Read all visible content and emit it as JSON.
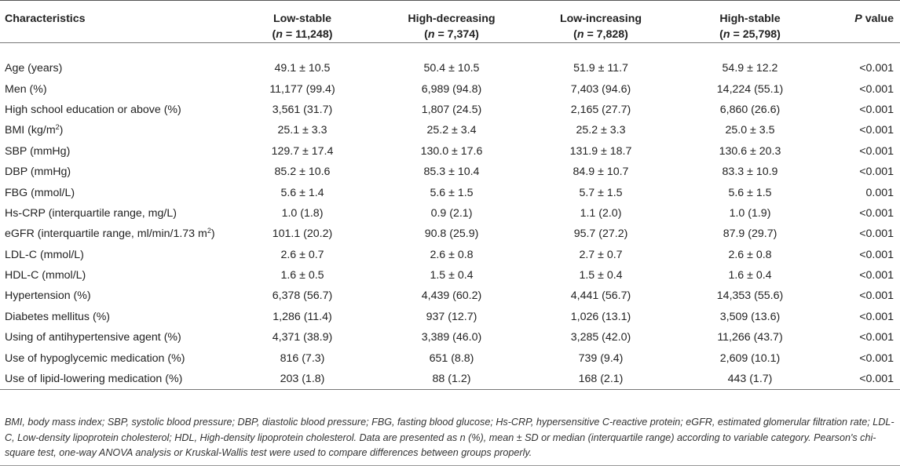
{
  "table": {
    "headers": {
      "characteristics": "Characteristics",
      "groups": [
        {
          "name": "Low-stable",
          "n_prefix": "(",
          "n_label": "n",
          "n_value": " = 11,248)"
        },
        {
          "name": "High-decreasing",
          "n_prefix": "(",
          "n_label": "n",
          "n_value": " = 7,374)"
        },
        {
          "name": "Low-increasing",
          "n_prefix": "(",
          "n_label": "n",
          "n_value": " = 7,828)"
        },
        {
          "name": "High-stable",
          "n_prefix": "(",
          "n_label": "n",
          "n_value": " = 25,798)"
        }
      ],
      "p_italic": "P",
      "p_rest": " value"
    },
    "rows": [
      {
        "label": "Age (years)",
        "values": [
          "49.1 ± 10.5",
          "50.4 ± 10.5",
          "51.9 ± 11.7",
          "54.9 ± 12.2"
        ],
        "p": "<0.001"
      },
      {
        "label": "Men (%)",
        "values": [
          "11,177 (99.4)",
          "6,989 (94.8)",
          "7,403 (94.6)",
          "14,224 (55.1)"
        ],
        "p": "<0.001"
      },
      {
        "label": "High school education or above (%)",
        "values": [
          "3,561 (31.7)",
          "1,807 (24.5)",
          "2,165 (27.7)",
          "6,860 (26.6)"
        ],
        "p": "<0.001"
      },
      {
        "label": "BMI (kg/m",
        "sup": "2",
        "label_after": ")",
        "values": [
          "25.1 ± 3.3",
          "25.2 ± 3.4",
          "25.2 ± 3.3",
          "25.0 ± 3.5"
        ],
        "p": "<0.001"
      },
      {
        "label": "SBP (mmHg)",
        "values": [
          "129.7 ± 17.4",
          "130.0 ± 17.6",
          "131.9 ± 18.7",
          "130.6 ± 20.3"
        ],
        "p": "<0.001"
      },
      {
        "label": "DBP (mmHg)",
        "values": [
          "85.2 ± 10.6",
          "85.3 ± 10.4",
          "84.9 ± 10.7",
          "83.3 ± 10.9"
        ],
        "p": "<0.001"
      },
      {
        "label": "FBG (mmol/L)",
        "values": [
          "5.6 ± 1.4",
          "5.6 ± 1.5",
          "5.7 ± 1.5",
          "5.6 ± 1.5"
        ],
        "p": "0.001"
      },
      {
        "label": "Hs-CRP (interquartile range, mg/L)",
        "values": [
          "1.0 (1.8)",
          "0.9 (2.1)",
          "1.1 (2.0)",
          "1.0 (1.9)"
        ],
        "p": "<0.001"
      },
      {
        "label": "eGFR (interquartile range, ml/min/1.73 m",
        "sup": "2",
        "label_after": ")",
        "values": [
          "101.1 (20.2)",
          "90.8 (25.9)",
          "95.7 (27.2)",
          "87.9 (29.7)"
        ],
        "p": "<0.001"
      },
      {
        "label": "LDL-C (mmol/L)",
        "values": [
          "2.6 ± 0.7",
          "2.6 ± 0.8",
          "2.7 ± 0.7",
          "2.6 ± 0.8"
        ],
        "p": "<0.001"
      },
      {
        "label": "HDL-C (mmol/L)",
        "values": [
          "1.6 ± 0.5",
          "1.5 ± 0.4",
          "1.5 ± 0.4",
          "1.6 ± 0.4"
        ],
        "p": "<0.001"
      },
      {
        "label": "Hypertension (%)",
        "values": [
          "6,378 (56.7)",
          "4,439 (60.2)",
          "4,441 (56.7)",
          "14,353 (55.6)"
        ],
        "p": "<0.001"
      },
      {
        "label": "Diabetes mellitus (%)",
        "values": [
          "1,286 (11.4)",
          "937 (12.7)",
          "1,026 (13.1)",
          "3,509 (13.6)"
        ],
        "p": "<0.001"
      },
      {
        "label": "Using of antihypertensive agent (%)",
        "values": [
          "4,371 (38.9)",
          "3,389 (46.0)",
          "3,285 (42.0)",
          "11,266 (43.7)"
        ],
        "p": "<0.001"
      },
      {
        "label": "Use of hypoglycemic medication (%)",
        "values": [
          "816 (7.3)",
          "651 (8.8)",
          "739 (9.4)",
          "2,609 (10.1)"
        ],
        "p": "<0.001"
      },
      {
        "label": "Use of lipid-lowering medication (%)",
        "values": [
          "203 (1.8)",
          "88 (1.2)",
          "168 (2.1)",
          "443 (1.7)"
        ],
        "p": "<0.001"
      }
    ]
  },
  "footnote": "BMI, body mass index; SBP, systolic blood pressure; DBP, diastolic blood pressure; FBG, fasting blood glucose; Hs-CRP, hypersensitive C-reactive protein; eGFR, estimated glomerular filtration rate; LDL-C, Low-density lipoprotein cholesterol; HDL, High-density lipoprotein cholesterol. Data are presented as n (%), mean ± SD or median (interquartile range) according to variable category. Pearson's chi-square test, one-way ANOVA analysis or Kruskal-Wallis test were used to compare differences between groups properly."
}
